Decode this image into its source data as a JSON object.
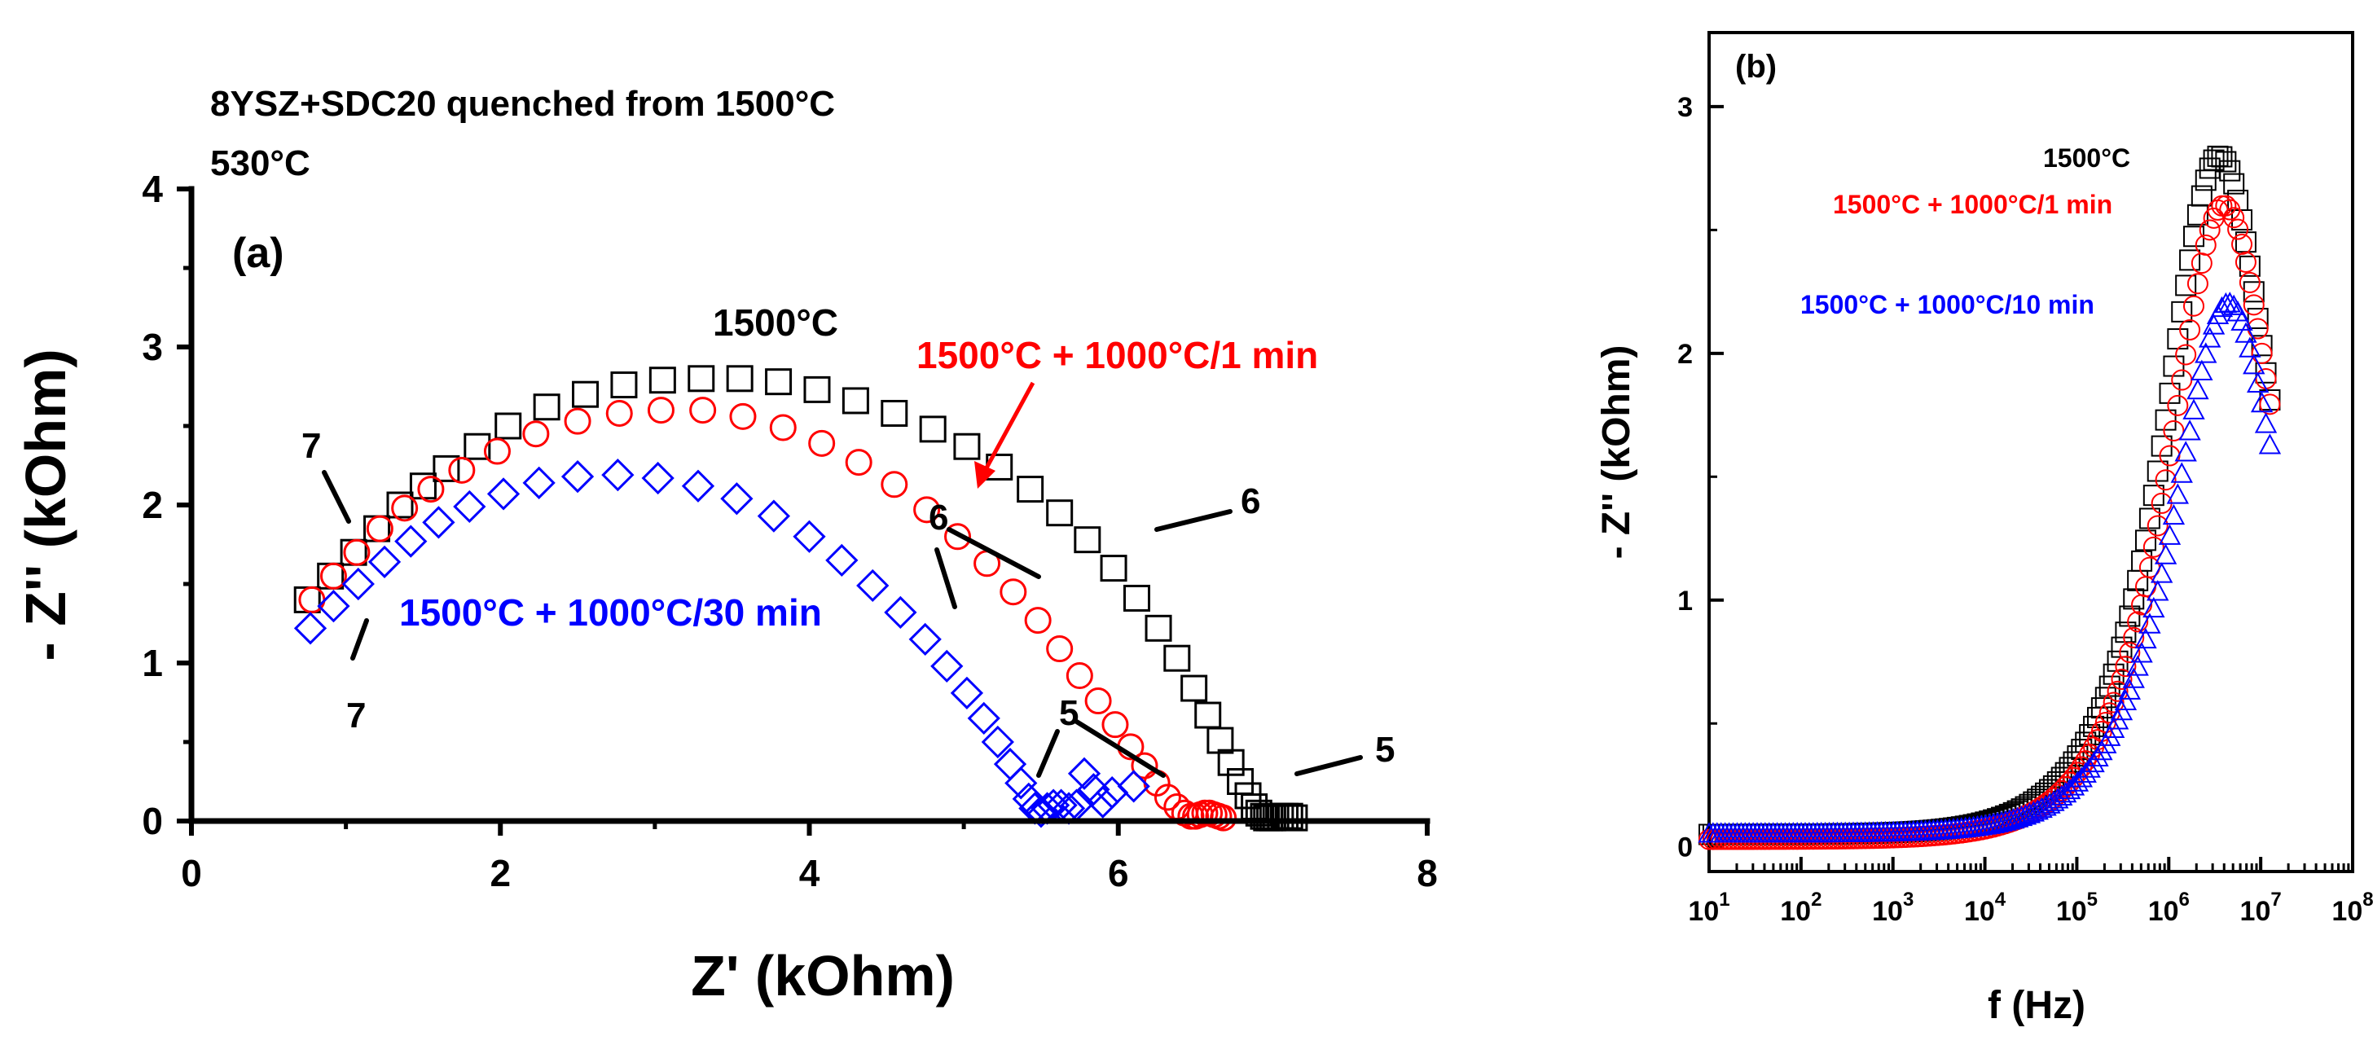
{
  "chart_data": [
    {
      "id": "a",
      "type": "scatter",
      "panel_label": "(a)",
      "title": "8YSZ+SDC20 quenched from 1500°C",
      "subtitle": "530°C",
      "xlabel": "Z' (kOhm)",
      "ylabel": "- Z'' (kOhm)",
      "xlim": [
        0,
        8
      ],
      "ylim": [
        0,
        4
      ],
      "xticks": [
        0,
        2,
        4,
        6,
        8
      ],
      "yticks": [
        0,
        1,
        2,
        3,
        4
      ],
      "series": [
        {
          "name": "1500°C",
          "marker": "square",
          "color": "#000000",
          "x": [
            0.75,
            0.9,
            1.05,
            1.2,
            1.35,
            1.5,
            1.65,
            1.85,
            2.05,
            2.3,
            2.55,
            2.8,
            3.05,
            3.3,
            3.55,
            3.8,
            4.05,
            4.3,
            4.55,
            4.8,
            5.02,
            5.23,
            5.43,
            5.62,
            5.8,
            5.97,
            6.12,
            6.26,
            6.38,
            6.49,
            6.58,
            6.66,
            6.73,
            6.79,
            6.84,
            6.88,
            6.91,
            6.94,
            6.96,
            6.98,
            7.0,
            7.02,
            7.05,
            7.08,
            7.11,
            7.14
          ],
          "y": [
            1.4,
            1.55,
            1.7,
            1.85,
            2.0,
            2.12,
            2.23,
            2.37,
            2.5,
            2.62,
            2.7,
            2.76,
            2.79,
            2.8,
            2.8,
            2.78,
            2.73,
            2.66,
            2.58,
            2.48,
            2.37,
            2.24,
            2.1,
            1.95,
            1.78,
            1.6,
            1.41,
            1.22,
            1.03,
            0.84,
            0.67,
            0.51,
            0.37,
            0.25,
            0.16,
            0.09,
            0.05,
            0.03,
            0.02,
            0.02,
            0.02,
            0.03,
            0.03,
            0.03,
            0.03,
            0.02
          ]
        },
        {
          "name": "1500°C + 1000°C/1 min",
          "marker": "circle",
          "color": "#ff0000",
          "x": [
            0.78,
            0.92,
            1.07,
            1.22,
            1.38,
            1.55,
            1.75,
            1.98,
            2.23,
            2.5,
            2.77,
            3.04,
            3.31,
            3.57,
            3.83,
            4.08,
            4.32,
            4.55,
            4.76,
            4.96,
            5.15,
            5.32,
            5.48,
            5.62,
            5.75,
            5.87,
            5.98,
            6.08,
            6.17,
            6.25,
            6.32,
            6.38,
            6.43,
            6.47,
            6.5,
            6.53,
            6.56,
            6.59,
            6.62,
            6.65,
            6.68
          ],
          "y": [
            1.4,
            1.55,
            1.7,
            1.85,
            1.98,
            2.1,
            2.22,
            2.34,
            2.45,
            2.53,
            2.58,
            2.6,
            2.6,
            2.56,
            2.49,
            2.39,
            2.27,
            2.13,
            1.97,
            1.8,
            1.63,
            1.45,
            1.27,
            1.09,
            0.92,
            0.76,
            0.61,
            0.47,
            0.35,
            0.24,
            0.15,
            0.09,
            0.05,
            0.03,
            0.03,
            0.04,
            0.05,
            0.05,
            0.04,
            0.03,
            0.02
          ]
        },
        {
          "name": "1500°C + 1000°C/30 min",
          "marker": "diamond",
          "color": "#0000ff",
          "x": [
            0.77,
            0.92,
            1.08,
            1.25,
            1.42,
            1.6,
            1.8,
            2.02,
            2.25,
            2.5,
            2.76,
            3.02,
            3.28,
            3.53,
            3.77,
            4.0,
            4.21,
            4.41,
            4.59,
            4.75,
            4.89,
            5.02,
            5.13,
            5.22,
            5.3,
            5.37,
            5.42,
            5.46,
            5.5,
            5.54,
            5.58,
            5.63,
            5.68,
            5.73,
            5.78,
            5.84,
            5.9,
            5.96,
            6.1
          ],
          "y": [
            1.22,
            1.36,
            1.5,
            1.64,
            1.77,
            1.89,
            1.99,
            2.07,
            2.14,
            2.18,
            2.19,
            2.17,
            2.12,
            2.04,
            1.93,
            1.8,
            1.65,
            1.49,
            1.32,
            1.15,
            0.98,
            0.81,
            0.65,
            0.5,
            0.36,
            0.24,
            0.14,
            0.08,
            0.06,
            0.08,
            0.1,
            0.1,
            0.08,
            0.1,
            0.3,
            0.2,
            0.12,
            0.18,
            0.22
          ]
        }
      ],
      "annotations": [
        {
          "text": "1500°C",
          "color": "#000000"
        },
        {
          "text": "1500°C + 1000°C/1 min",
          "color": "#ff0000"
        },
        {
          "text": "1500°C + 1000°C/30 min",
          "color": "#0000ff"
        },
        {
          "text": "7",
          "color": "#000000"
        },
        {
          "text": "7",
          "color": "#000000"
        },
        {
          "text": "6",
          "color": "#000000"
        },
        {
          "text": "6",
          "color": "#000000"
        },
        {
          "text": "5",
          "color": "#000000"
        },
        {
          "text": "5",
          "color": "#000000"
        }
      ]
    },
    {
      "id": "b",
      "type": "scatter",
      "panel_label": "(b)",
      "xlabel": "f (Hz)",
      "ylabel": "- Z'' (kOhm)",
      "xscale": "log",
      "xlim": [
        10,
        100000000
      ],
      "ylim": [
        -0.1,
        3.3
      ],
      "xticks": [
        {
          "base": "10",
          "exp": "1"
        },
        {
          "base": "10",
          "exp": "2"
        },
        {
          "base": "10",
          "exp": "3"
        },
        {
          "base": "10",
          "exp": "4"
        },
        {
          "base": "10",
          "exp": "5"
        },
        {
          "base": "10",
          "exp": "6"
        },
        {
          "base": "10",
          "exp": "7"
        },
        {
          "base": "10",
          "exp": "8"
        }
      ],
      "yticks": [
        0,
        1,
        2,
        3
      ],
      "series": [
        {
          "name": "1500°C",
          "marker": "square",
          "color": "#000000",
          "peak_log_f": 6.55,
          "peak_value": 2.8,
          "low_freq_value": 0.05
        },
        {
          "name": "1500°C + 1000°C/1 min",
          "marker": "circle",
          "color": "#ff0000",
          "peak_log_f": 6.6,
          "peak_value": 2.6,
          "low_freq_value": 0.03
        },
        {
          "name": "1500°C + 1000°C/10 min",
          "marker": "triangle",
          "color": "#0000ff",
          "peak_log_f": 6.65,
          "peak_value": 2.2,
          "low_freq_value": 0.05
        }
      ],
      "legend": [
        "1500°C",
        "1500°C + 1000°C/1 min",
        "1500°C + 1000°C/10 min"
      ]
    }
  ]
}
